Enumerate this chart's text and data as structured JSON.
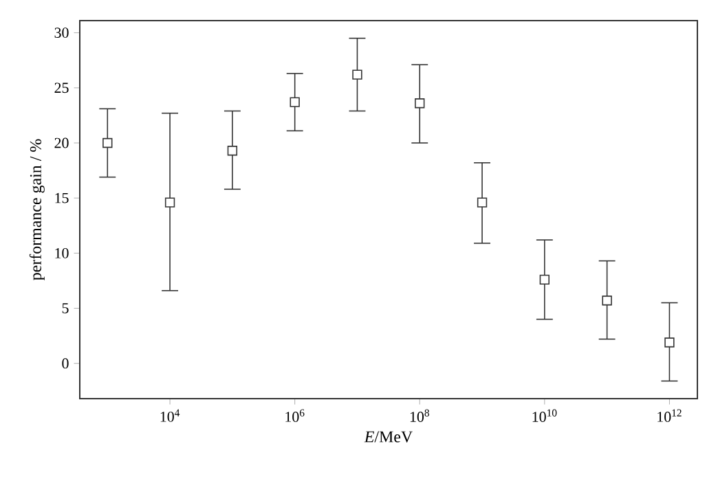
{
  "chart_data": {
    "type": "scatter",
    "xlabel": "*E*/MeV",
    "ylabel": "performance gain / %",
    "log": "x",
    "marker": "square",
    "grid": false,
    "x": [
      1000,
      10000,
      100000,
      1000000,
      10000000,
      100000000,
      1000000000,
      10000000000,
      100000000000,
      1000000000000
    ],
    "series": [
      {
        "color": "#333333",
        "values": [
          20.0,
          14.6,
          19.3,
          23.7,
          26.2,
          23.6,
          14.6,
          7.6,
          5.7,
          1.9
        ],
        "errors": [
          [
            16.9,
            23.1
          ],
          [
            6.6,
            22.7
          ],
          [
            15.8,
            22.9
          ],
          [
            21.1,
            26.3
          ],
          [
            22.9,
            29.5
          ],
          [
            20.0,
            27.1
          ],
          [
            10.9,
            18.2
          ],
          [
            4.0,
            11.2
          ],
          [
            2.2,
            9.3
          ],
          [
            -1.6,
            5.5
          ]
        ]
      }
    ],
    "xlim": [
      360,
      2800000000000.0
    ],
    "ylim": [
      -3.2,
      31.1
    ],
    "xticks": [
      {
        "value": 10000,
        "label": "10$^{4}$"
      },
      {
        "value": 1000000,
        "label": "10$^{6}$"
      },
      {
        "value": 100000000,
        "label": "10$^{8}$"
      },
      {
        "value": 10000000000,
        "label": "10$^{10}$"
      },
      {
        "value": 1000000000000,
        "label": "10$^{12}$"
      }
    ],
    "yticks": [
      0,
      5,
      10,
      15,
      20,
      25,
      30
    ]
  }
}
